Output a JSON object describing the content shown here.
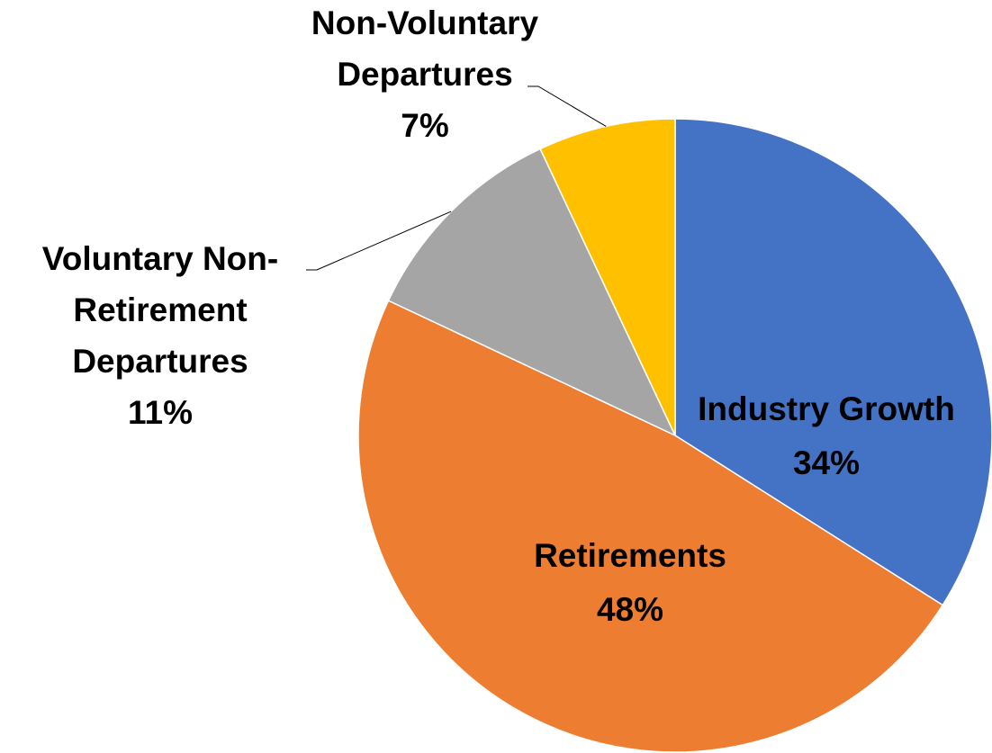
{
  "chart_data": {
    "type": "pie",
    "categories": [
      "Industry Growth",
      "Retirements",
      "Voluntary Non-Retirement Departures",
      "Non-Voluntary Departures"
    ],
    "values": [
      34,
      48,
      11,
      7
    ],
    "value_labels": [
      "34%",
      "48%",
      "11%",
      "7%"
    ],
    "colors": [
      "#4472c4",
      "#ed7d31",
      "#a5a5a5",
      "#ffc000"
    ]
  }
}
